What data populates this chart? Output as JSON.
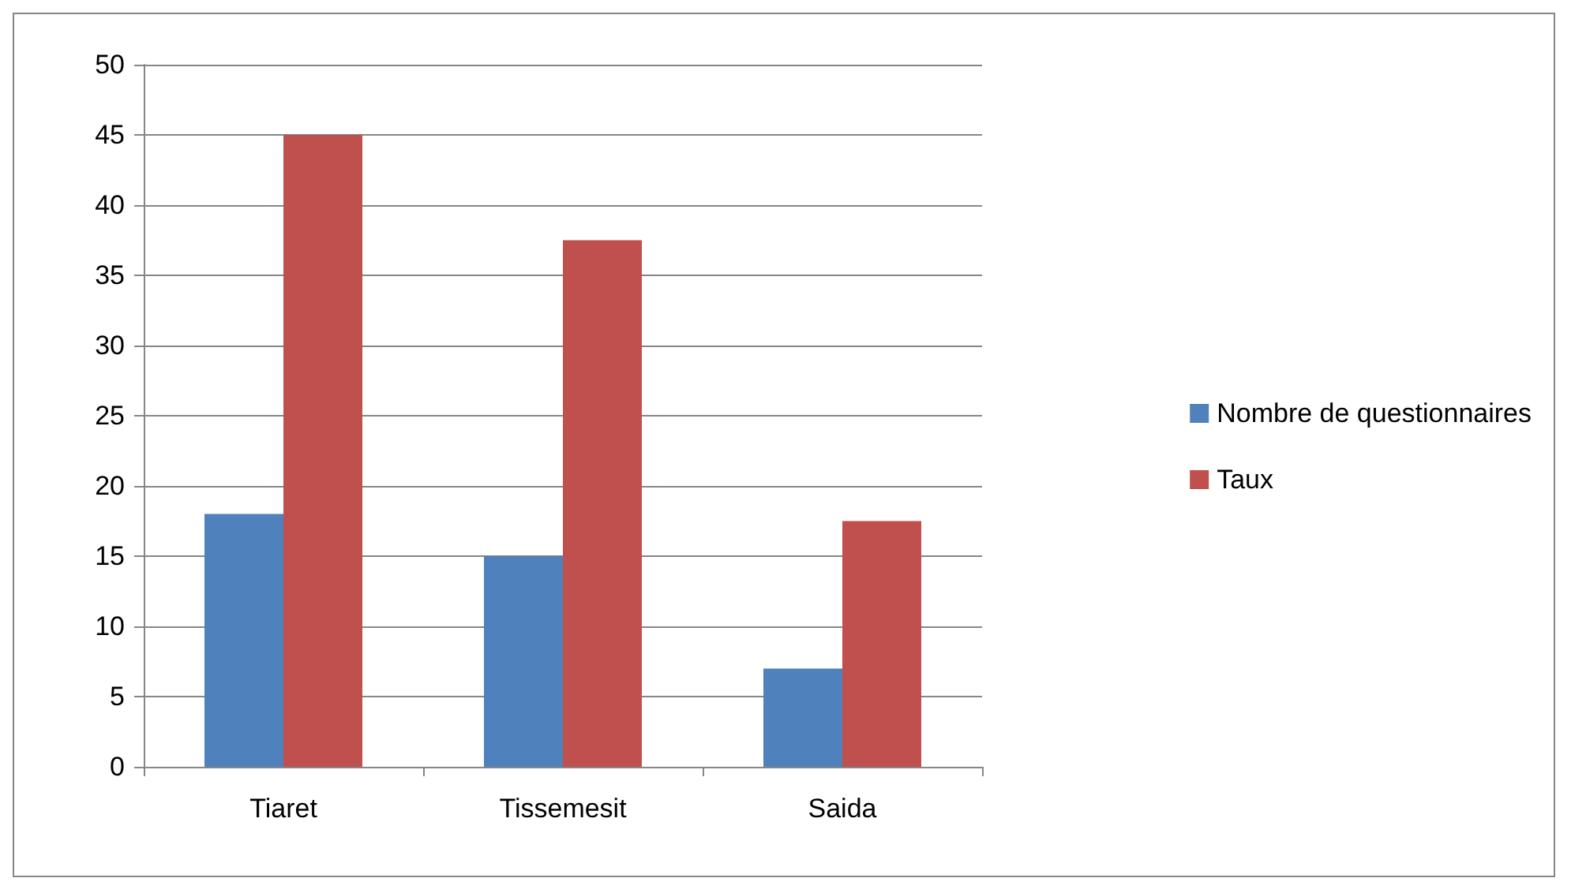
{
  "chart_data": {
    "type": "bar",
    "categories": [
      "Tiaret",
      "Tissemesit",
      "Saida"
    ],
    "series": [
      {
        "name": "Nombre de questionnaires",
        "color": "#4f81bd",
        "values": [
          18,
          15,
          7
        ]
      },
      {
        "name": "Taux",
        "color": "#c0504d",
        "values": [
          45,
          37.5,
          17.5
        ]
      }
    ],
    "ylim": [
      0,
      50
    ],
    "yticks": [
      0,
      5,
      10,
      15,
      20,
      25,
      30,
      35,
      40,
      45,
      50
    ],
    "grid": "y",
    "legend": "right"
  }
}
